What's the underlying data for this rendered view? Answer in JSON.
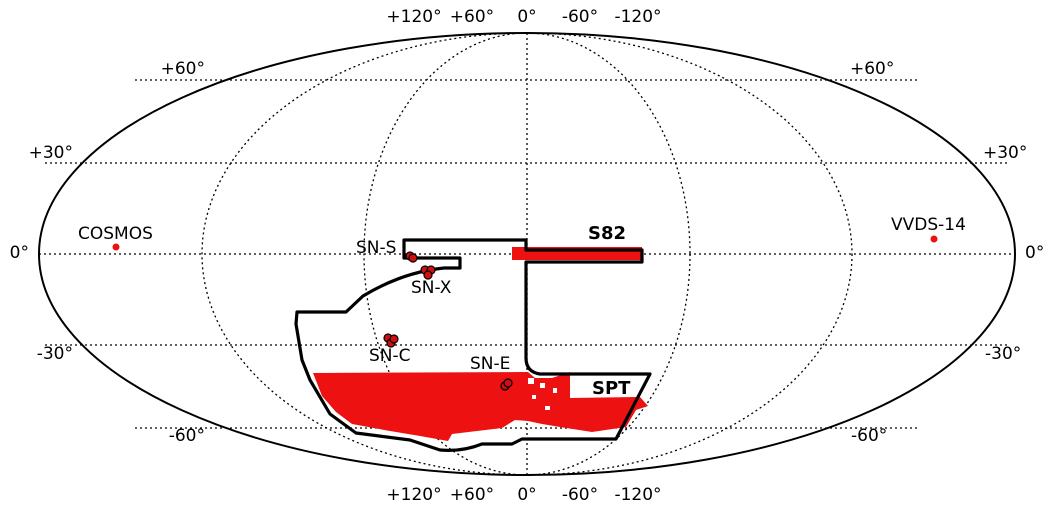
{
  "map": {
    "projection": "mollweide",
    "top_ticks": [
      "+120°",
      "+60°",
      "0°",
      "-60°",
      "-120°"
    ],
    "bottom_ticks": [
      "+120°",
      "+60°",
      "0°",
      "-60°",
      "-120°"
    ],
    "lat_ticks_left": [
      "+60°",
      "+30°",
      "0°",
      "-30°",
      "-60°"
    ],
    "lat_ticks_right": [
      "+60°",
      "+30°",
      "0°",
      "-30°",
      "-60°"
    ],
    "survey_labels": {
      "s82": "S82",
      "spt": "SPT"
    },
    "field_labels": {
      "cosmos": "COSMOS",
      "vvds": "VVDS-14",
      "sn_s": "SN-S",
      "sn_x": "SN-X",
      "sn_c": "SN-C",
      "sn_e": "SN-E"
    },
    "colors": {
      "coverage": "#ee1111",
      "footprint_outline": "#000000",
      "grid": "#000000"
    }
  }
}
